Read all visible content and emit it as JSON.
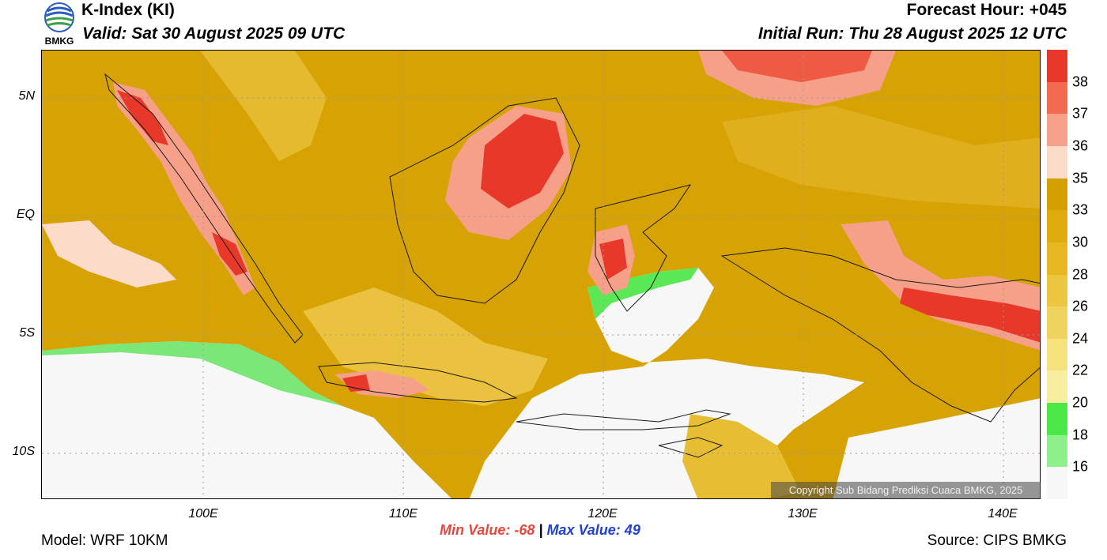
{
  "header": {
    "title": "K-Index (KI)",
    "valid": "Valid: Sat 30 August 2025 09 UTC",
    "forecast_hour": "Forecast Hour: +045",
    "initial_run": "Initial Run: Thu 28 August 2025 12 UTC"
  },
  "logo": {
    "text": "BMKG",
    "icon": "bmkg-logo"
  },
  "map": {
    "y_ticks": [
      "5N",
      "EQ",
      "5S",
      "10S"
    ],
    "x_ticks": [
      "100E",
      "110E",
      "120E",
      "130E",
      "140E"
    ],
    "copyright": "Copyright Sub Bidang Prediksi Cuaca BMKG, 2025"
  },
  "colorbar": {
    "labels": [
      "38",
      "37",
      "36",
      "35",
      "33",
      "30",
      "28",
      "26",
      "24",
      "22",
      "20",
      "18",
      "16"
    ],
    "colors": [
      "#e8382a",
      "#f26a50",
      "#f7a08a",
      "#fcdcc8",
      "#d4a000",
      "#deac0e",
      "#e6b720",
      "#ecc63e",
      "#f0d35e",
      "#f5e17e",
      "#f9eea0",
      "#4ce848",
      "#8df08a",
      "#f7f7f7"
    ]
  },
  "stats": {
    "min": "Min Value: -68",
    "separator": "|",
    "max": "Max Value:  49"
  },
  "footer": {
    "model": "Model: WRF 10KM",
    "source": "Source: CIPS BMKG"
  }
}
